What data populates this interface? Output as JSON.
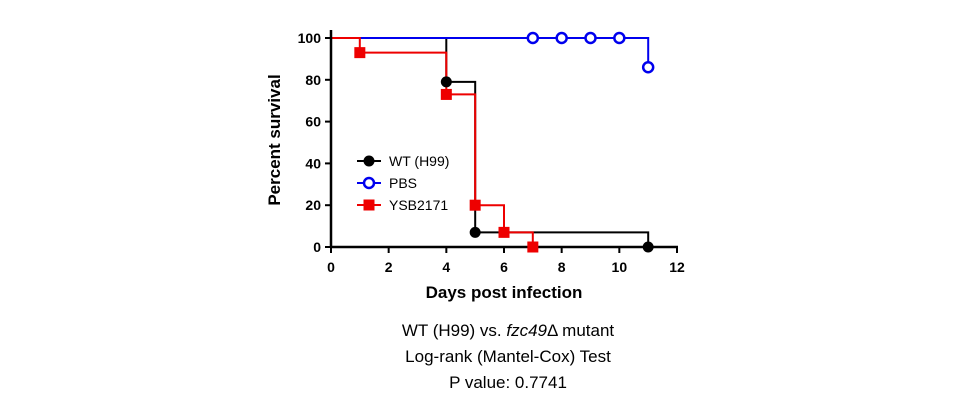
{
  "chart_data": {
    "type": "line",
    "step": true,
    "xlabel": "Days post infection",
    "ylabel": "Percent survival",
    "xlim": [
      0,
      12
    ],
    "ylim": [
      0,
      100
    ],
    "xticks": [
      0,
      2,
      4,
      6,
      8,
      10,
      12
    ],
    "yticks": [
      0,
      20,
      40,
      60,
      80,
      100
    ],
    "xtick_labels": [
      "0",
      "2",
      "4",
      "6",
      "8",
      "10",
      "12"
    ],
    "ytick_labels": [
      "0",
      "20",
      "40",
      "60",
      "80",
      "100"
    ],
    "legend_position": "left",
    "series": [
      {
        "name": "WT (H99)",
        "color": "#000000",
        "marker": "filled-circle",
        "steps": [
          [
            0,
            100
          ],
          [
            4,
            100
          ],
          [
            4,
            79
          ],
          [
            5,
            79
          ],
          [
            5,
            7
          ],
          [
            11,
            7
          ],
          [
            11,
            0
          ]
        ],
        "markers": [
          [
            4,
            79
          ],
          [
            5,
            7
          ],
          [
            11,
            0
          ]
        ]
      },
      {
        "name": "PBS",
        "color": "#0000ee",
        "marker": "open-circle",
        "steps": [
          [
            0,
            100
          ],
          [
            11,
            100
          ],
          [
            11,
            86
          ]
        ],
        "markers": [
          [
            7,
            100
          ],
          [
            8,
            100
          ],
          [
            9,
            100
          ],
          [
            10,
            100
          ],
          [
            11,
            86
          ]
        ]
      },
      {
        "name": "YSB2171",
        "color": "#ee0000",
        "marker": "filled-square",
        "steps": [
          [
            0,
            100
          ],
          [
            1,
            100
          ],
          [
            1,
            93
          ],
          [
            4,
            93
          ],
          [
            4,
            73
          ],
          [
            5,
            73
          ],
          [
            5,
            20
          ],
          [
            6,
            20
          ],
          [
            6,
            7
          ],
          [
            7,
            7
          ],
          [
            7,
            0
          ]
        ],
        "markers": [
          [
            1,
            93
          ],
          [
            4,
            73
          ],
          [
            5,
            20
          ],
          [
            6,
            7
          ],
          [
            7,
            0
          ]
        ]
      }
    ]
  },
  "caption": {
    "line1_prefix": "WT (H99) vs. ",
    "line1_gene": "fzc49",
    "line1_suffix": "Δ mutant",
    "line2": "Log-rank (Mantel-Cox) Test",
    "line3": "P value: 0.7741"
  }
}
